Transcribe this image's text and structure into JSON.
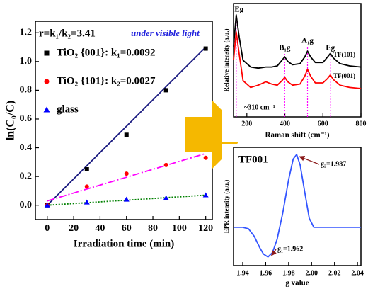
{
  "chart_data": [
    {
      "type": "scatter",
      "annotations": [
        "r=k₁/k₂=3.41",
        "under visible light"
      ],
      "x_label": "Irradiation time (min)",
      "y_label": "ln(C₀/C)",
      "x": [
        0,
        30,
        60,
        90,
        120
      ],
      "series": [
        {
          "name": "TiO₂ {001}: k₁=0.0092",
          "color": "#000000",
          "marker": "square",
          "values": [
            0,
            0.25,
            0.49,
            0.8,
            1.09
          ],
          "fit": [
            0,
            1.1
          ],
          "fit_color": "#1a1a80",
          "fit_dash": "none"
        },
        {
          "name": "TiO₂ {101}: k₂=0.0027",
          "color": "#ff0000",
          "marker": "circle",
          "values": [
            0,
            0.13,
            0.22,
            0.28,
            0.33
          ],
          "fit": [
            0.03,
            0.36
          ],
          "fit_color": "#ff00ff",
          "fit_dash": "10 3 2 3"
        },
        {
          "name": "glass",
          "color": "#0000ff",
          "marker": "triangle",
          "values": [
            0,
            0.02,
            0.04,
            0.05,
            0.07
          ],
          "fit": [
            0,
            0.07
          ],
          "fit_color": "#008000",
          "fit_dash": "2 2"
        }
      ],
      "xlim": [
        -9,
        125
      ],
      "ylim": [
        -0.1,
        1.28
      ],
      "xticks": [
        0,
        20,
        40,
        60,
        80,
        100,
        120
      ],
      "yticks": [
        {
          "value": 0,
          "label": "0.0"
        },
        {
          "value": 0.2,
          "label": "0.2"
        },
        {
          "value": 0.4,
          "label": "0.4"
        },
        {
          "value": 0.6,
          "label": "0.6"
        },
        {
          "value": 0.8,
          "label": "0.8"
        },
        {
          "value": 1,
          "label": "1.0"
        },
        {
          "value": 1.2,
          "label": "1.2"
        }
      ]
    },
    {
      "type": "line",
      "x_label": "Raman shift (cm⁻¹)",
      "y_label": "Relative intensity (a.u.)",
      "annotation": "~310 cm⁻¹",
      "x": [
        130,
        144,
        160,
        180,
        220,
        260,
        300,
        330,
        360,
        385,
        399,
        415,
        440,
        480,
        505,
        519,
        535,
        560,
        600,
        625,
        639,
        655,
        690,
        740,
        800
      ],
      "series": [
        {
          "name": "TF(101)",
          "color": "#000000",
          "values": [
            0.62,
            0.9,
            0.7,
            0.5,
            0.44,
            0.43,
            0.44,
            0.44,
            0.45,
            0.5,
            0.53,
            0.49,
            0.46,
            0.47,
            0.53,
            0.58,
            0.53,
            0.48,
            0.48,
            0.53,
            0.56,
            0.52,
            0.47,
            0.45,
            0.44
          ]
        },
        {
          "name": "TF(001)",
          "color": "#ff0000",
          "values": [
            0.5,
            0.75,
            0.55,
            0.32,
            0.26,
            0.28,
            0.31,
            0.29,
            0.28,
            0.32,
            0.35,
            0.31,
            0.28,
            0.29,
            0.36,
            0.42,
            0.36,
            0.3,
            0.3,
            0.34,
            0.37,
            0.33,
            0.28,
            0.26,
            0.25
          ]
        }
      ],
      "peaks": [
        {
          "label": "Eg",
          "value": 144
        },
        {
          "label": "B₁g",
          "value": 399
        },
        {
          "label": "A₁g",
          "value": 519
        },
        {
          "label": "Eg",
          "value": 639
        }
      ],
      "peak_color": "#ff00ff",
      "xlim": [
        130,
        800
      ],
      "ylim": [
        0,
        1
      ],
      "xticks": [
        200,
        400,
        600,
        800
      ]
    },
    {
      "type": "line",
      "title": "TF001",
      "x_label": "g value",
      "y_label": "EPR intensity (a.u.)",
      "x": [
        1.932,
        1.94,
        1.945,
        1.95,
        1.955,
        1.958,
        1.962,
        1.966,
        1.97,
        1.975,
        1.98,
        1.984,
        1.987,
        1.99,
        1.994,
        1.998,
        2.002,
        2.01,
        2.02,
        2.043
      ],
      "series": [
        {
          "color": "#3355ff",
          "values": [
            0,
            0,
            -0.05,
            -0.3,
            -0.7,
            -0.9,
            -1,
            -0.85,
            -0.4,
            0.5,
            1.6,
            2.3,
            2.45,
            2.1,
            1.2,
            0.3,
            0,
            0,
            0,
            0
          ]
        }
      ],
      "annotations": [
        {
          "label": "g₂=1.987",
          "value": 1.987
        },
        {
          "label": "g₁=1.962",
          "value": 1.962
        }
      ],
      "arrow_color": "#8b1a1a",
      "xlim": [
        1.932,
        2.043
      ],
      "ylim": [
        -1.29,
        2.69
      ],
      "xticks": [
        1.94,
        1.96,
        1.98,
        {
          "value": 2,
          "label": "2.00"
        },
        2.02,
        2.04
      ]
    }
  ]
}
